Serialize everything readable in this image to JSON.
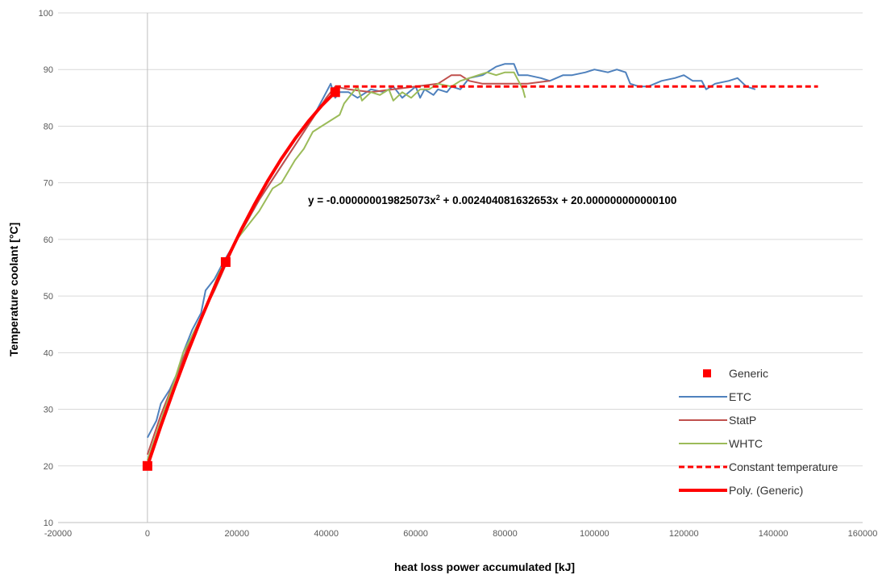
{
  "chart_data": {
    "type": "line",
    "xlabel": "heat loss power accumulated [kJ]",
    "ylabel": "Temperature coolant [°C]",
    "xlim": [
      -20000,
      160000
    ],
    "ylim": [
      10,
      100
    ],
    "xticks": [
      -20000,
      0,
      20000,
      40000,
      60000,
      80000,
      100000,
      120000,
      140000,
      160000
    ],
    "yticks": [
      10,
      20,
      30,
      40,
      50,
      60,
      70,
      80,
      90,
      100
    ],
    "grid": "horizontal",
    "legend_position": "right",
    "trendline_equation": {
      "prefix": "y = -0.000000019825073x",
      "exponent": "2",
      "suffix": " + 0.002404081632653x + 20.000000000000100"
    },
    "series": [
      {
        "name": "Generic",
        "kind": "marker",
        "color": "#ff0000",
        "x": [
          0,
          17500,
          42000
        ],
        "y": [
          20,
          56,
          86
        ]
      },
      {
        "name": "ETC",
        "kind": "line",
        "color": "#4f81bd",
        "x": [
          0,
          2000,
          3000,
          5000,
          7000,
          8000,
          10000,
          12000,
          13000,
          15000,
          17000,
          20000,
          25000,
          30000,
          35000,
          38000,
          40000,
          41000,
          42000,
          43000,
          45000,
          47000,
          50000,
          53000,
          55000,
          57000,
          60000,
          61000,
          62000,
          64000,
          65000,
          67000,
          68000,
          70000,
          72000,
          75000,
          78000,
          80000,
          82000,
          83000,
          85000,
          88000,
          90000,
          93000,
          95000,
          98000,
          100000,
          103000,
          105000,
          107000,
          108000,
          110000,
          112000,
          115000,
          118000,
          120000,
          122000,
          124000,
          125000,
          127000,
          130000,
          132000,
          134000,
          136000
        ],
        "y": [
          25,
          28,
          31,
          33.5,
          37,
          40,
          44,
          47,
          51,
          53,
          56,
          60,
          67,
          73,
          79,
          83,
          86,
          87.5,
          85,
          86,
          86,
          85,
          86.5,
          86,
          87,
          85,
          87,
          85,
          86.5,
          85.5,
          86.5,
          86,
          87,
          86.5,
          88.5,
          89,
          90.5,
          91,
          91,
          89,
          89,
          88.5,
          88,
          89,
          89,
          89.5,
          90,
          89.5,
          90,
          89.5,
          87.5,
          87,
          87,
          88,
          88.5,
          89,
          88,
          88,
          86.5,
          87.5,
          88,
          88.5,
          87,
          86.5
        ]
      },
      {
        "name": "StatP",
        "kind": "line",
        "color": "#c0504d",
        "x": [
          0,
          3000,
          6000,
          10000,
          15000,
          20000,
          25000,
          30000,
          35000,
          40000,
          42000,
          45000,
          50000,
          55000,
          60000,
          65000,
          68000,
          70000,
          72000,
          75000,
          80000,
          85000,
          90000
        ],
        "y": [
          22,
          29,
          35,
          43,
          51,
          60,
          67,
          73,
          79,
          85,
          87,
          86.5,
          86,
          86.5,
          87,
          87.5,
          89,
          89,
          88,
          87.5,
          87.5,
          87.5,
          88
        ]
      },
      {
        "name": "WHTC",
        "kind": "line",
        "color": "#9bbb59",
        "x": [
          0,
          3000,
          6000,
          8000,
          10000,
          13000,
          16000,
          20000,
          25000,
          28000,
          30000,
          33000,
          35000,
          37000,
          39000,
          41000,
          43000,
          44000,
          45000,
          46000,
          47000,
          48000,
          50000,
          52000,
          54000,
          55000,
          57000,
          59000,
          61000,
          63000,
          65000,
          68000,
          70000,
          72000,
          74000,
          76000,
          78000,
          80000,
          82000,
          83000,
          84000,
          84500
        ],
        "y": [
          21,
          28,
          35,
          40,
          43,
          48,
          54,
          60,
          65,
          69,
          70,
          74,
          76,
          79,
          80,
          81,
          82,
          84,
          85,
          86,
          87,
          84.5,
          86,
          85.5,
          86.5,
          84.5,
          86,
          85,
          86.5,
          86.5,
          87.5,
          87,
          88,
          88.5,
          89,
          89.5,
          89,
          89.5,
          89.5,
          88,
          86.5,
          85
        ]
      },
      {
        "name": "Constant temperature",
        "kind": "dashed",
        "color": "#ff0000",
        "x": [
          42000,
          150000
        ],
        "y": [
          87,
          87
        ]
      },
      {
        "name": "Poly. (Generic)",
        "kind": "polyline",
        "color": "#ff0000",
        "x": [
          0,
          3000,
          6000,
          9000,
          12000,
          15000,
          18000,
          21000,
          24000,
          27000,
          30000,
          33000,
          36000,
          39000,
          42000
        ],
        "y": [
          20,
          27.03,
          33.71,
          40.03,
          45.99,
          51.6,
          56.85,
          61.74,
          66.28,
          70.46,
          74.28,
          77.75,
          80.86,
          83.62,
          86.02
        ]
      }
    ]
  }
}
